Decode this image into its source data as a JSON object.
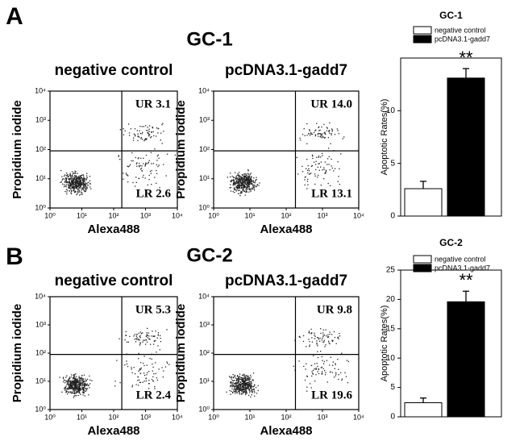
{
  "panels": [
    {
      "letter": "A",
      "title": "GC-1"
    },
    {
      "letter": "B",
      "title": "GC-2"
    }
  ],
  "chart_data": [
    {
      "type": "scatter",
      "title": "negative control",
      "xlabel": "Alexa488",
      "ylabel": "Propidium iodide",
      "log_scale": true,
      "xlim": [
        1,
        10000
      ],
      "ylim": [
        1,
        10000
      ],
      "xticks": [
        {
          "value": 1,
          "label": "10⁰"
        },
        {
          "value": 10,
          "label": "10¹"
        },
        {
          "value": 100,
          "label": "10²"
        },
        {
          "value": 1000,
          "label": "10³"
        },
        {
          "value": 10000,
          "label": "10⁴"
        }
      ],
      "yticks": [
        {
          "value": 1,
          "label": "10⁰"
        },
        {
          "value": 10,
          "label": "10¹"
        },
        {
          "value": 100,
          "label": "10²"
        },
        {
          "value": 1000,
          "label": "10³"
        },
        {
          "value": 10000,
          "label": "10⁴"
        }
      ],
      "gate": {
        "x": 180,
        "y": 90
      },
      "quadrant_labels": {
        "UR": "UR 3.1",
        "LR": "LR 2.6"
      }
    },
    {
      "type": "scatter",
      "title": "pcDNA3.1-gadd7",
      "xlabel": "Alexa488",
      "ylabel": "Propidium iodide",
      "log_scale": true,
      "xlim": [
        1,
        10000
      ],
      "ylim": [
        1,
        10000
      ],
      "xticks": [
        {
          "value": 1,
          "label": "10⁰"
        },
        {
          "value": 10,
          "label": "10¹"
        },
        {
          "value": 100,
          "label": "10²"
        },
        {
          "value": 1000,
          "label": "10³"
        },
        {
          "value": 10000,
          "label": "10⁴"
        }
      ],
      "yticks": [
        {
          "value": 1,
          "label": "10⁰"
        },
        {
          "value": 10,
          "label": "10¹"
        },
        {
          "value": 100,
          "label": "10²"
        },
        {
          "value": 1000,
          "label": "10³"
        },
        {
          "value": 10000,
          "label": "10⁴"
        }
      ],
      "gate": {
        "x": 180,
        "y": 90
      },
      "quadrant_labels": {
        "UR": "UR 14.0",
        "LR": "LR 13.1"
      }
    },
    {
      "type": "bar",
      "title": "GC-1",
      "ylabel": "Apoptotic Rates(%)",
      "ylim": [
        0,
        15
      ],
      "yticks": [
        0,
        5,
        10
      ],
      "annotation": "**",
      "series": [
        {
          "name": "negative control",
          "color": "#ffffff",
          "values": [
            2.6
          ],
          "errors": [
            0.7
          ]
        },
        {
          "name": "pcDNA3.1-gadd7",
          "color": "#000000",
          "values": [
            13.1
          ],
          "errors": [
            0.9
          ]
        }
      ]
    },
    {
      "type": "scatter",
      "title": "negative control",
      "xlabel": "Alexa488",
      "ylabel": "Propidium iodide",
      "log_scale": true,
      "xlim": [
        1,
        10000
      ],
      "ylim": [
        1,
        10000
      ],
      "xticks": [
        {
          "value": 1,
          "label": "10⁰"
        },
        {
          "value": 10,
          "label": "10¹"
        },
        {
          "value": 100,
          "label": "10²"
        },
        {
          "value": 1000,
          "label": "10³"
        },
        {
          "value": 10000,
          "label": "10⁴"
        }
      ],
      "yticks": [
        {
          "value": 1,
          "label": "10⁰"
        },
        {
          "value": 10,
          "label": "10¹"
        },
        {
          "value": 100,
          "label": "10²"
        },
        {
          "value": 1000,
          "label": "10³"
        },
        {
          "value": 10000,
          "label": "10⁴"
        }
      ],
      "gate": {
        "x": 180,
        "y": 90
      },
      "quadrant_labels": {
        "UR": "UR 5.3",
        "LR": "LR 2.4"
      }
    },
    {
      "type": "scatter",
      "title": "pcDNA3.1-gadd7",
      "xlabel": "Alexa488",
      "ylabel": "Propidium iodide",
      "log_scale": true,
      "xlim": [
        1,
        10000
      ],
      "ylim": [
        1,
        10000
      ],
      "xticks": [
        {
          "value": 1,
          "label": "10⁰"
        },
        {
          "value": 10,
          "label": "10¹"
        },
        {
          "value": 100,
          "label": "10²"
        },
        {
          "value": 1000,
          "label": "10³"
        },
        {
          "value": 10000,
          "label": "10⁴"
        }
      ],
      "yticks": [
        {
          "value": 1,
          "label": "10⁰"
        },
        {
          "value": 10,
          "label": "10¹"
        },
        {
          "value": 100,
          "label": "10²"
        },
        {
          "value": 1000,
          "label": "10³"
        },
        {
          "value": 10000,
          "label": "10⁴"
        }
      ],
      "gate": {
        "x": 180,
        "y": 90
      },
      "quadrant_labels": {
        "UR": "UR 9.8",
        "LR": "LR 19.6"
      }
    },
    {
      "type": "bar",
      "title": "GC-2",
      "ylabel": "Apoptotic Rates(%)",
      "ylim": [
        0,
        25
      ],
      "yticks": [
        0,
        5,
        10,
        15,
        20,
        25
      ],
      "annotation": "**",
      "series": [
        {
          "name": "negative control",
          "color": "#ffffff",
          "values": [
            2.4
          ],
          "errors": [
            0.8
          ]
        },
        {
          "name": "pcDNA3.1-gadd7",
          "color": "#000000",
          "values": [
            19.6
          ],
          "errors": [
            1.8
          ]
        }
      ]
    }
  ]
}
